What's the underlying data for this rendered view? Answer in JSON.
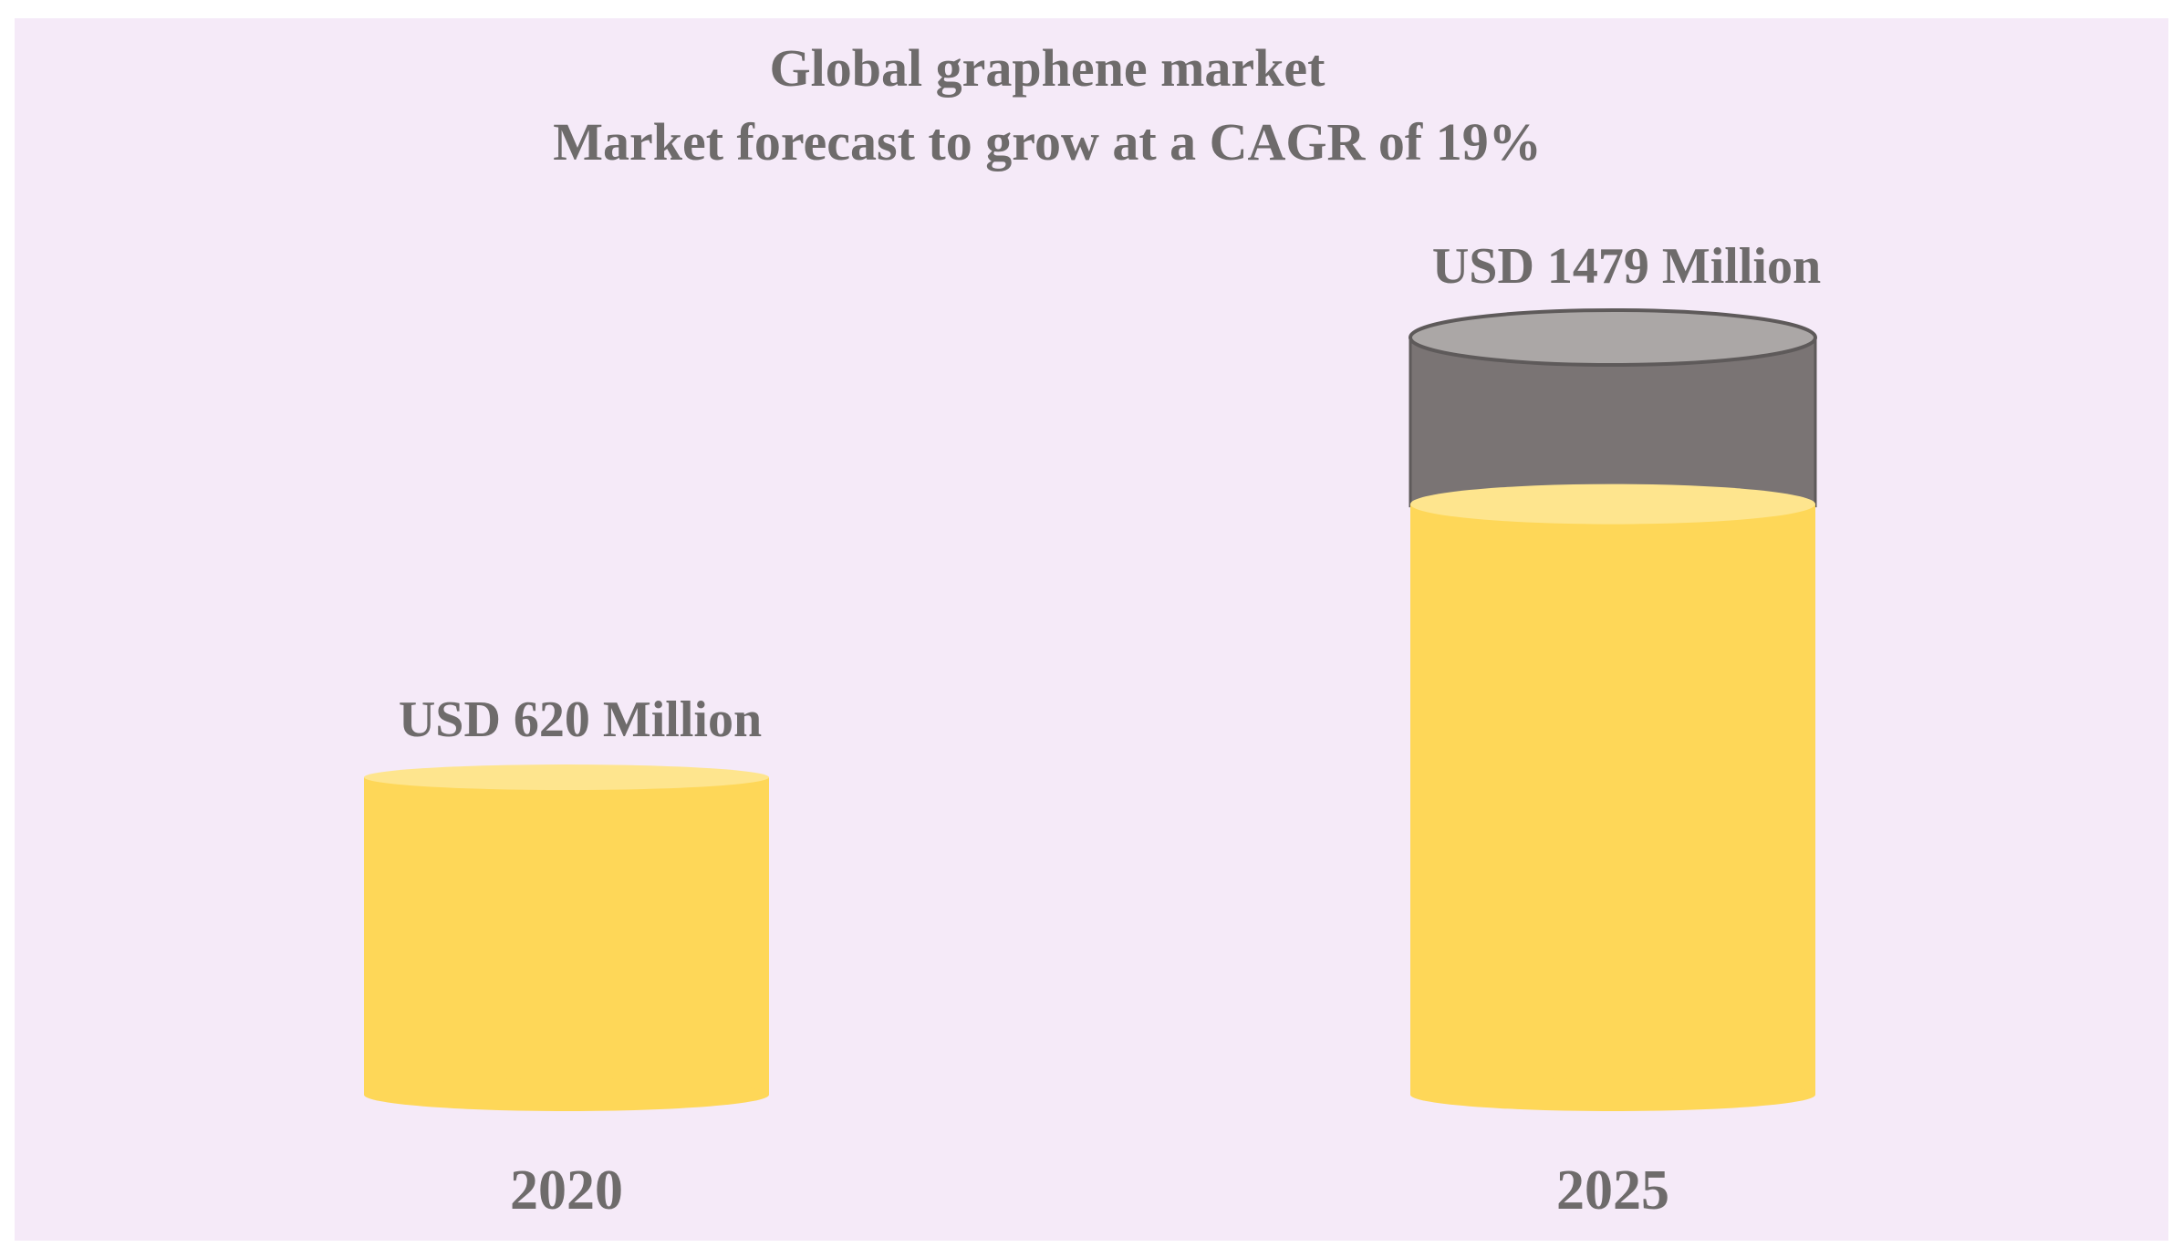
{
  "chart_data": {
    "type": "bar",
    "title": "Global graphene market",
    "subtitle": "Market forecast to grow at a CAGR of 19%",
    "categories": [
      "2020",
      "2025"
    ],
    "values": [
      620,
      1479
    ],
    "unit": "USD Million",
    "data_labels": [
      "USD 620 Million",
      "USD 1479 Million"
    ],
    "ylim": [
      0,
      1479
    ],
    "grid": false,
    "legend": "none",
    "colors": {
      "background": "#f5eaf8",
      "fill": "#fed758",
      "fill_top": "#fee58e",
      "empty_body": "#7a7474",
      "empty_top": "#aba7a6",
      "text": "#6e6b6b"
    }
  }
}
